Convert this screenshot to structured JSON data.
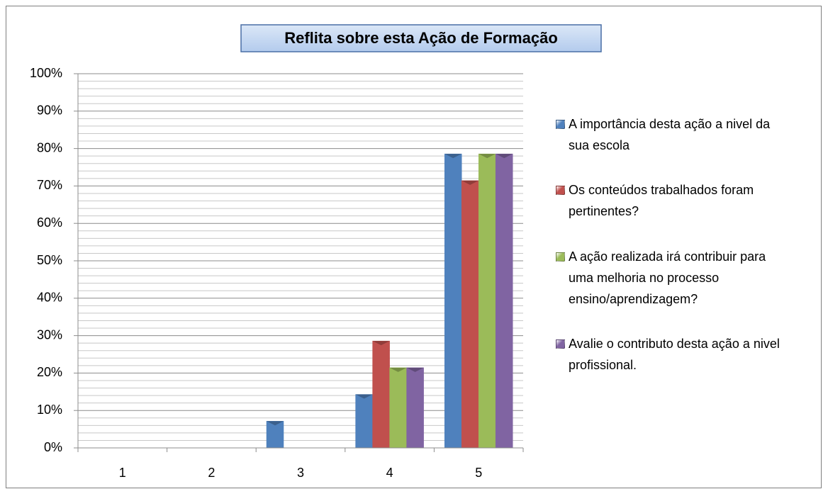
{
  "chart_data": {
    "type": "bar",
    "title": "Reflita sobre esta Ação de Formação",
    "categories": [
      "1",
      "2",
      "3",
      "4",
      "5"
    ],
    "series": [
      {
        "name": "A importância desta ação a nivel da sua escola",
        "color": "#4f81bd",
        "values": [
          0,
          0,
          7.14,
          14.29,
          78.57
        ]
      },
      {
        "name": "Os conteúdos trabalhados foram pertinentes?",
        "color": "#c0504d",
        "values": [
          0,
          0,
          0,
          28.57,
          71.43
        ]
      },
      {
        "name": "A ação realizada irá contribuir para uma melhoria no processo ensino/aprendizagem?",
        "color": "#9bbb59",
        "values": [
          0,
          0,
          0,
          21.43,
          78.57
        ]
      },
      {
        "name": "Avalie o contributo desta ação a nivel profissional.",
        "color": "#8064a2",
        "values": [
          0,
          0,
          0,
          21.43,
          78.57
        ]
      }
    ],
    "ylim": [
      0,
      100
    ],
    "yticks": [
      {
        "value": 0,
        "label": "0%"
      },
      {
        "value": 10,
        "label": "10%"
      },
      {
        "value": 20,
        "label": "20%"
      },
      {
        "value": 30,
        "label": "30%"
      },
      {
        "value": 40,
        "label": "40%"
      },
      {
        "value": 50,
        "label": "50%"
      },
      {
        "value": 60,
        "label": "60%"
      },
      {
        "value": 70,
        "label": "70%"
      },
      {
        "value": 80,
        "label": "80%"
      },
      {
        "value": 90,
        "label": "90%"
      },
      {
        "value": 100,
        "label": "100%"
      }
    ],
    "minor_yticks": [
      2,
      4,
      6,
      8,
      12,
      14,
      16,
      18,
      22,
      24,
      26,
      28,
      32,
      34,
      36,
      38,
      42,
      44,
      46,
      48,
      52,
      54,
      56,
      58,
      62,
      64,
      66,
      68,
      72,
      74,
      76,
      78,
      82,
      84,
      86,
      88,
      92,
      94,
      96,
      98
    ],
    "grid": true,
    "legend": "right"
  }
}
